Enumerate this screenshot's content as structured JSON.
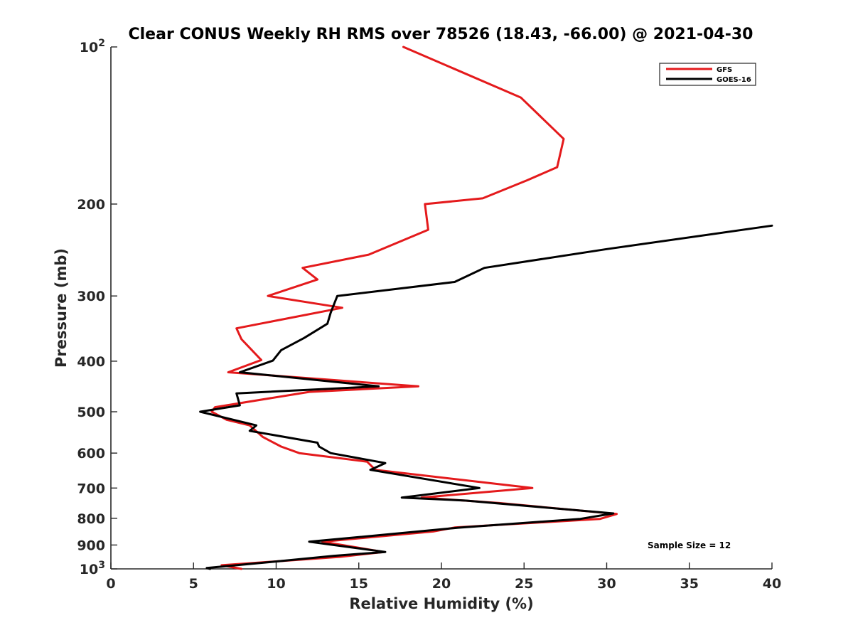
{
  "chart_data": {
    "type": "line",
    "title": "Clear CONUS Weekly RH RMS over 78526 (18.43, -66.00) @ 2021-04-30",
    "xlabel": "Relative Humidity (%)",
    "ylabel": "Pressure (mb)",
    "xlim": [
      0,
      40
    ],
    "ylim": [
      100,
      1000
    ],
    "y_scale": "log",
    "y_reversed": true,
    "x_ticks": [
      "0",
      "5",
      "10",
      "15",
      "20",
      "25",
      "30",
      "35",
      "40"
    ],
    "y_ticks": [
      {
        "value": 100,
        "base": "10",
        "exp": "2"
      },
      {
        "value": 200,
        "label": "200"
      },
      {
        "value": 300,
        "label": "300"
      },
      {
        "value": 400,
        "label": "400"
      },
      {
        "value": 500,
        "label": "500"
      },
      {
        "value": 600,
        "label": "600"
      },
      {
        "value": 700,
        "label": "700"
      },
      {
        "value": 800,
        "label": "800"
      },
      {
        "value": 900,
        "label": "900"
      },
      {
        "value": 1000,
        "base": "10",
        "exp": "3"
      }
    ],
    "grid": false,
    "legend_position": "top-right",
    "annotation": "Sample Size = 12",
    "series": [
      {
        "name": "GFS",
        "color": "#e41a1c",
        "points": [
          [
            17.7,
            100
          ],
          [
            24.8,
            125
          ],
          [
            27.4,
            150
          ],
          [
            27.0,
            170
          ],
          [
            25.2,
            180
          ],
          [
            22.5,
            195
          ],
          [
            19.0,
            200
          ],
          [
            19.2,
            224
          ],
          [
            15.6,
            250
          ],
          [
            11.6,
            265
          ],
          [
            12.5,
            279
          ],
          [
            9.5,
            300
          ],
          [
            14.0,
            316
          ],
          [
            7.6,
            346
          ],
          [
            7.9,
            363
          ],
          [
            9.1,
            398
          ],
          [
            7.1,
            420
          ],
          [
            18.6,
            447
          ],
          [
            12.0,
            458
          ],
          [
            6.3,
            490
          ],
          [
            6.1,
            500
          ],
          [
            7.0,
            518
          ],
          [
            8.4,
            531
          ],
          [
            9.2,
            559
          ],
          [
            10.3,
            583
          ],
          [
            11.4,
            600
          ],
          [
            15.5,
            623
          ],
          [
            16.0,
            646
          ],
          [
            25.5,
            700
          ],
          [
            18.8,
            730
          ],
          [
            23.5,
            748
          ],
          [
            30.6,
            785
          ],
          [
            29.6,
            802
          ],
          [
            20.8,
            833
          ],
          [
            19.5,
            848
          ],
          [
            12.8,
            887
          ],
          [
            16.5,
            928
          ],
          [
            13.9,
            948
          ],
          [
            6.7,
            984
          ],
          [
            7.9,
            1000
          ]
        ]
      },
      {
        "name": "GOES-16",
        "color": "#000000",
        "points": [
          [
            40.0,
            220
          ],
          [
            30.0,
            244
          ],
          [
            22.6,
            265
          ],
          [
            20.8,
            282
          ],
          [
            13.7,
            300
          ],
          [
            13.3,
            323
          ],
          [
            13.1,
            339
          ],
          [
            11.7,
            361
          ],
          [
            10.3,
            381
          ],
          [
            9.8,
            399
          ],
          [
            7.8,
            420
          ],
          [
            16.2,
            447
          ],
          [
            7.6,
            461
          ],
          [
            7.8,
            486
          ],
          [
            5.4,
            500
          ],
          [
            8.8,
            531
          ],
          [
            8.4,
            544
          ],
          [
            12.5,
            573
          ],
          [
            12.6,
            583
          ],
          [
            13.3,
            600
          ],
          [
            16.6,
            627
          ],
          [
            15.7,
            646
          ],
          [
            22.3,
            700
          ],
          [
            17.6,
            730
          ],
          [
            21.5,
            740
          ],
          [
            30.4,
            783
          ],
          [
            28.4,
            802
          ],
          [
            21.0,
            834
          ],
          [
            18.6,
            848
          ],
          [
            12.0,
            887
          ],
          [
            16.6,
            928
          ],
          [
            13.5,
            944
          ],
          [
            9.7,
            970
          ],
          [
            5.8,
            996
          ],
          [
            6.0,
            1000
          ]
        ]
      }
    ]
  }
}
